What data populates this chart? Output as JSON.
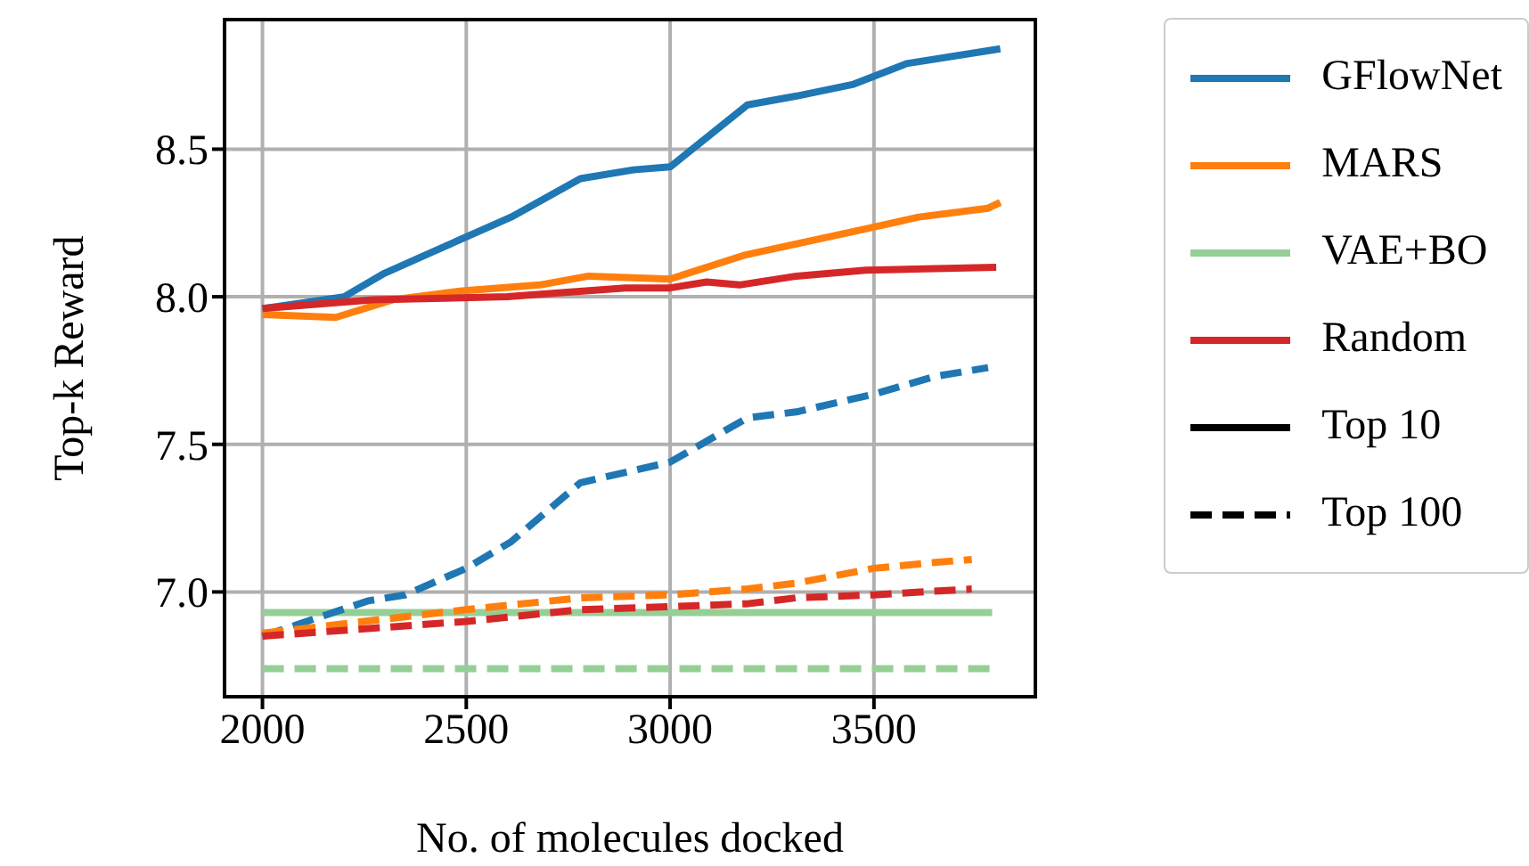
{
  "chart_data": {
    "type": "line",
    "xlabel": "No. of molecules docked",
    "ylabel": "Top-k Reward",
    "xlim": [
      1907,
      3896
    ],
    "ylim": [
      6.645,
      8.939
    ],
    "xticks": [
      2000,
      2500,
      3000,
      3500
    ],
    "yticks": [
      {
        "value": 7,
        "label": "7.0"
      },
      {
        "value": 7.5,
        "label": "7.5"
      },
      {
        "value": 8,
        "label": "8.0"
      },
      {
        "value": 8.5,
        "label": "8.5"
      }
    ],
    "grid": true,
    "legend": "right",
    "series": [
      {
        "name": "GFlowNet",
        "color": "#1f77b4",
        "line_style": "solid",
        "x": [
          2000,
          2200,
          2300,
          2430,
          2610,
          2780,
          2910,
          3000,
          3190,
          3310,
          3450,
          3580,
          3810
        ],
        "values": [
          7.96,
          8.0,
          8.08,
          8.16,
          8.27,
          8.4,
          8.43,
          8.44,
          8.65,
          8.68,
          8.72,
          8.79,
          8.84
        ]
      },
      {
        "name": "MARS",
        "color": "#ff7f0e",
        "line_style": "solid",
        "x": [
          2000,
          2180,
          2320,
          2490,
          2680,
          2800,
          3000,
          3180,
          3480,
          3610,
          3780,
          3810
        ],
        "values": [
          7.94,
          7.93,
          7.99,
          8.02,
          8.04,
          8.07,
          8.06,
          8.14,
          8.23,
          8.27,
          8.3,
          8.32
        ]
      },
      {
        "name": "VAE+BO",
        "color": "#96cf96",
        "line_style": "solid",
        "x": [
          2000,
          3790
        ],
        "values": [
          6.93,
          6.93
        ]
      },
      {
        "name": "Random",
        "color": "#d62728",
        "line_style": "solid",
        "x": [
          2000,
          2270,
          2600,
          2890,
          3000,
          3090,
          3170,
          3310,
          3480,
          3800
        ],
        "values": [
          7.96,
          7.99,
          8.0,
          8.03,
          8.03,
          8.05,
          8.04,
          8.07,
          8.09,
          8.1
        ]
      },
      {
        "name": "Top 10",
        "color": "#000000",
        "line_style": "solid"
      },
      {
        "name": "Top 100",
        "color": "#000000",
        "line_style": "dashed"
      },
      {
        "color": "#1f77b4",
        "line_style": "dashed",
        "x": [
          2000,
          2260,
          2350,
          2500,
          2610,
          2780,
          3000,
          3190,
          3310,
          3500,
          3650,
          3780
        ],
        "values": [
          6.85,
          6.97,
          6.99,
          7.08,
          7.17,
          7.37,
          7.44,
          7.59,
          7.61,
          7.67,
          7.73,
          7.76
        ]
      },
      {
        "color": "#ff7f0e",
        "line_style": "dashed",
        "x": [
          2000,
          2500,
          2780,
          3000,
          3190,
          3310,
          3500,
          3650,
          3740
        ],
        "values": [
          6.86,
          6.94,
          6.98,
          6.99,
          7.01,
          7.03,
          7.08,
          7.1,
          7.11
        ]
      },
      {
        "color": "#96cf96",
        "line_style": "dashed",
        "x": [
          2000,
          3790
        ],
        "values": [
          6.74,
          6.74
        ]
      },
      {
        "color": "#d62728",
        "line_style": "dashed",
        "x": [
          2000,
          2500,
          2780,
          3000,
          3190,
          3310,
          3500,
          3740
        ],
        "values": [
          6.85,
          6.9,
          6.94,
          6.95,
          6.96,
          6.98,
          6.99,
          7.01
        ]
      }
    ]
  }
}
